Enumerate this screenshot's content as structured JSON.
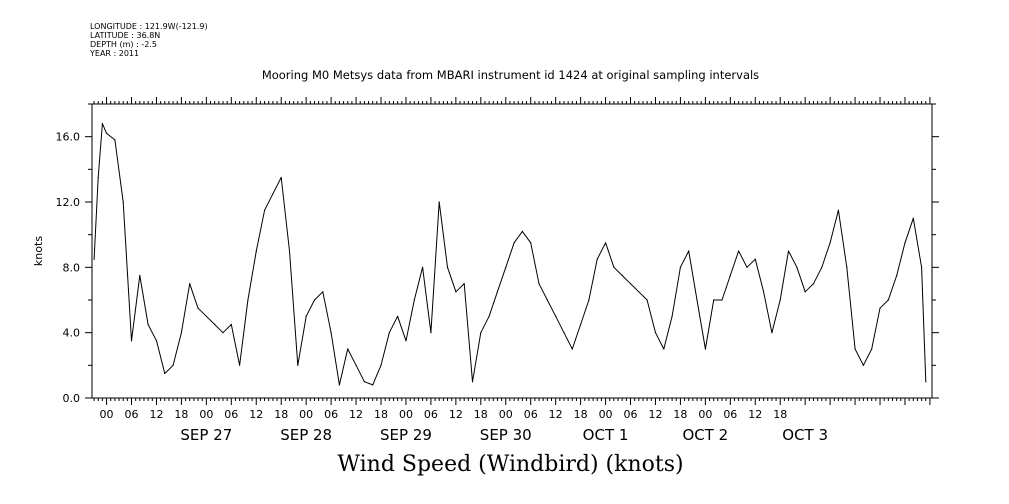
{
  "header": {
    "longitude": "LONGITUDE : 121.9W(-121.9)",
    "latitude": "LATITUDE : 36.8N",
    "depth": "DEPTH (m) : -2.5",
    "year": "YEAR : 2011"
  },
  "chart_title": "Mooring M0 Metsys data from MBARI instrument id 1424 at original sampling intervals",
  "chart_data": {
    "type": "line",
    "title": "Mooring M0 Metsys data from MBARI instrument id 1424 at original sampling intervals",
    "xlabel": "Wind Speed (Windbird) (knots)",
    "ylabel": "knots",
    "ylim": [
      0,
      18
    ],
    "xlim_hours": [
      -21.5,
      180.5
    ],
    "y_ticks": [
      "0.0",
      "4.0",
      "8.0",
      "12.0",
      "16.0"
    ],
    "x_hour_ticks": [
      "00",
      "06",
      "12",
      "18",
      "00",
      "06",
      "12",
      "18",
      "00",
      "06",
      "12",
      "18",
      "00",
      "06",
      "12",
      "18",
      "00",
      "06",
      "12",
      "18",
      "00",
      "06",
      "12",
      "18",
      "00",
      "06",
      "12",
      "18"
    ],
    "x_day_labels": [
      "SEP 27",
      "SEP 28",
      "SEP 29",
      "SEP 30",
      "OCT  1",
      "OCT  2",
      "OCT  3"
    ],
    "x_hours_since_SEP27_00": [
      -21,
      -20,
      -19,
      -18,
      -16,
      -14,
      -12,
      -10,
      -8,
      -6,
      -4,
      -2,
      0,
      2,
      4,
      6,
      8,
      10,
      12,
      14,
      16,
      18,
      20,
      22,
      24,
      26,
      28,
      30,
      32,
      34,
      36,
      38,
      40,
      42,
      44,
      46,
      48,
      50,
      52,
      54,
      56,
      58,
      60,
      62,
      64,
      66,
      68,
      70,
      72,
      74,
      76,
      78,
      80,
      82,
      84,
      86,
      88,
      90,
      92,
      94,
      96,
      98,
      100,
      102,
      104,
      106,
      108,
      110,
      112,
      114,
      116,
      118,
      120,
      122,
      124,
      126,
      128,
      130,
      132,
      134,
      136,
      138,
      140,
      142,
      144,
      146,
      148,
      150,
      152,
      154,
      156,
      158,
      160,
      162,
      164,
      166,
      168,
      170,
      172,
      174,
      176,
      178,
      179
    ],
    "series": [
      {
        "values": [
          8.5,
          13.5,
          16.8,
          16.2,
          15.8,
          12.0,
          3.5,
          7.5,
          4.5,
          3.5,
          1.5,
          2.0,
          4.0,
          7.0,
          5.5,
          5.0,
          4.5,
          4.0,
          4.5,
          2.0,
          6.0,
          9.0,
          11.5,
          12.5,
          13.5,
          9.0,
          2.0,
          5.0,
          6.0,
          6.5,
          4.0,
          0.8,
          3.0,
          2.0,
          1.0,
          0.8,
          2.0,
          4.0,
          5.0,
          3.5,
          6.0,
          8.0,
          4.0,
          12.0,
          8.0,
          6.5,
          7.0,
          1.0,
          4.0,
          5.0,
          6.5,
          8.0,
          9.5,
          10.2,
          9.5,
          7.0,
          6.0,
          5.0,
          4.0,
          3.0,
          4.5,
          6.0,
          8.5,
          9.5,
          8.0,
          7.5,
          7.0,
          6.5,
          6.0,
          4.0,
          3.0,
          5.0,
          8.0,
          9.0,
          6.0,
          3.0,
          6.0,
          6.0,
          7.5,
          9.0,
          8.0,
          8.5,
          6.5,
          4.0,
          6.0,
          9.0,
          8.0,
          6.5,
          7.0,
          8.0,
          9.5,
          11.5,
          8.0,
          3.0,
          2.0,
          3.0,
          5.5,
          6.0,
          7.5,
          9.5,
          11.0,
          8.0,
          1.0
        ]
      }
    ],
    "grid": false
  },
  "axis_labels": {
    "ylabel": "knots",
    "xlabel": "Wind Speed (Windbird) (knots)"
  }
}
